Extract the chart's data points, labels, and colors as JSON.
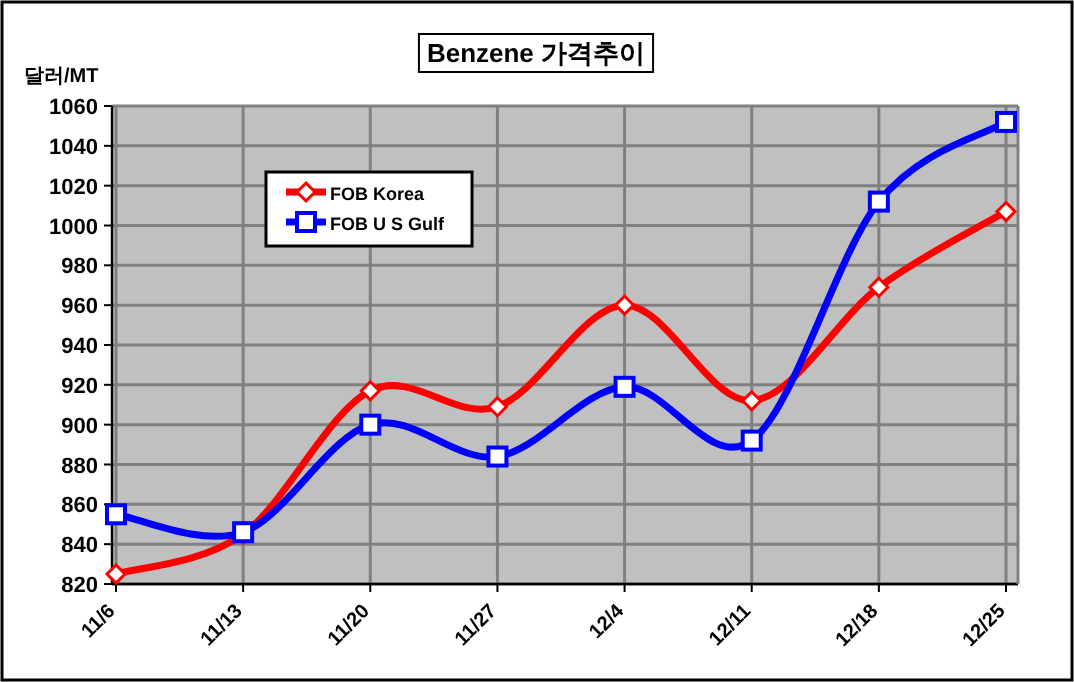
{
  "chart_data": {
    "type": "line",
    "title": "Benzene 가격추이",
    "ylabel": "달러/MT",
    "categories": [
      "11/6",
      "11/13",
      "11/20",
      "11/27",
      "12/4",
      "12/11",
      "12/18",
      "12/25"
    ],
    "series": [
      {
        "name": "FOB Korea",
        "color": "#ff0000",
        "marker": "diamond",
        "values": [
          825,
          845,
          917,
          909,
          960,
          912,
          969,
          1007
        ]
      },
      {
        "name": "FOB U S Gulf",
        "color": "#0000ff",
        "marker": "square",
        "values": [
          855,
          846,
          900,
          884,
          919,
          892,
          1012,
          1052
        ]
      }
    ],
    "ylim": [
      820,
      1060
    ],
    "yticks": [
      820,
      840,
      860,
      880,
      900,
      920,
      940,
      960,
      980,
      1000,
      1020,
      1040,
      1060
    ],
    "grid": true,
    "legend": "top left"
  }
}
